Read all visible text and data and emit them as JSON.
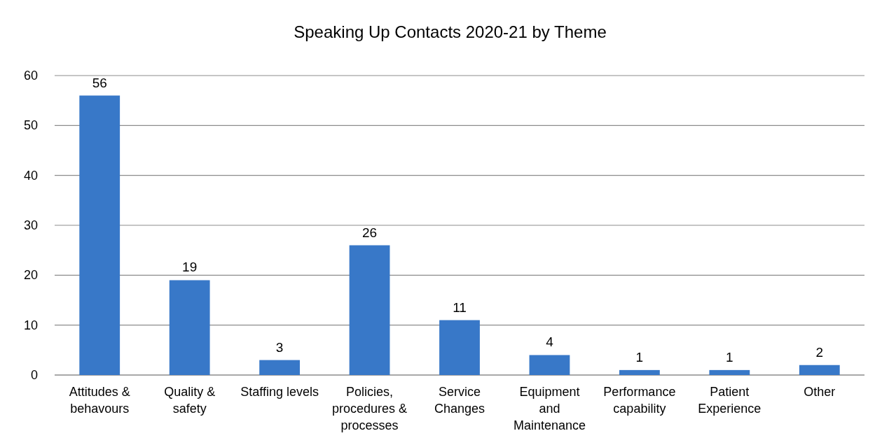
{
  "chart_data": {
    "type": "bar",
    "title": "Speaking Up Contacts 2020-21 by Theme",
    "categories": [
      "Attitudes & behavours",
      "Quality & safety",
      "Staffing levels",
      "Policies, procedures & processes",
      "Service Changes",
      "Equipment and Maintenance",
      "Performance capability",
      "Patient Experience",
      "Other"
    ],
    "values": [
      56,
      19,
      3,
      26,
      11,
      4,
      1,
      1,
      2
    ],
    "color": "#3878c8",
    "ylim": [
      0,
      60
    ],
    "yticks": [
      0,
      10,
      20,
      30,
      40,
      50,
      60
    ],
    "grid": "y",
    "data_labels": true
  }
}
